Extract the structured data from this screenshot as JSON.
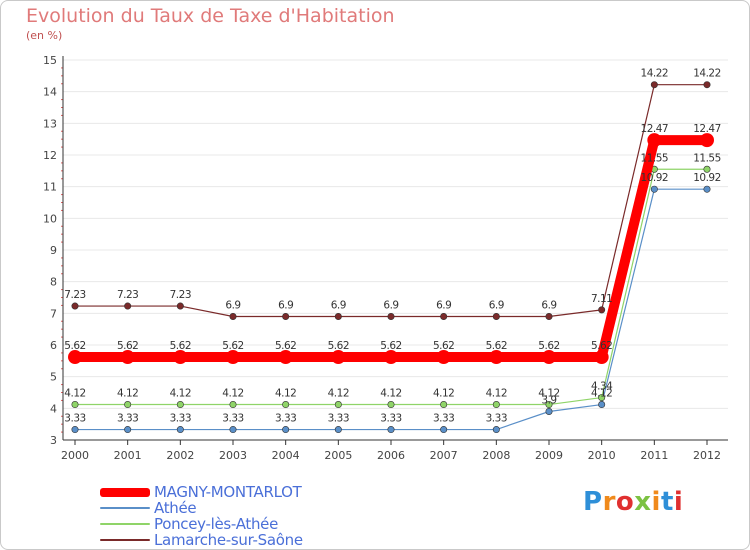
{
  "header": {
    "title": "Evolution du Taux de Taxe d'Habitation",
    "unit": "(en %)"
  },
  "chart_data": {
    "type": "line",
    "title": "Evolution du Taux de Taxe d'Habitation",
    "ylabel": "(en %)",
    "xlabel": "",
    "ylim": [
      3,
      15
    ],
    "yticks": [
      "3",
      "4",
      "5",
      "6",
      "7",
      "8",
      "9",
      "10",
      "11",
      "12",
      "13",
      "14",
      "15"
    ],
    "categories": [
      "2000",
      "2001",
      "2002",
      "2003",
      "2004",
      "2005",
      "2006",
      "2007",
      "2008",
      "2009",
      "2010",
      "2011",
      "2012"
    ],
    "series": [
      {
        "name": "MAGNY-MONTARLOT",
        "color": "#ff0000",
        "values": [
          5.62,
          5.62,
          5.62,
          5.62,
          5.62,
          5.62,
          5.62,
          5.62,
          5.62,
          5.62,
          5.62,
          12.47,
          12.47
        ],
        "labels": [
          "5.62",
          "5.62",
          "5.62",
          "5.62",
          "5.62",
          "5.62",
          "5.62",
          "5.62",
          "5.62",
          "5.62",
          "5.62",
          "12.47",
          "12.47"
        ]
      },
      {
        "name": "Athée",
        "color": "#5a8fc8",
        "values": [
          3.33,
          3.33,
          3.33,
          3.33,
          3.33,
          3.33,
          3.33,
          3.33,
          3.33,
          3.9,
          4.12,
          10.92,
          10.92
        ],
        "labels": [
          "3.33",
          "3.33",
          "3.33",
          "3.33",
          "3.33",
          "3.33",
          "3.33",
          "3.33",
          "3.33",
          "3.9",
          "4.12",
          "10.92",
          "10.92"
        ]
      },
      {
        "name": "Poncey-lès-Athée",
        "color": "#8fd468",
        "values": [
          4.12,
          4.12,
          4.12,
          4.12,
          4.12,
          4.12,
          4.12,
          4.12,
          4.12,
          4.12,
          4.34,
          11.55,
          11.55
        ],
        "labels": [
          "4.12",
          "4.12",
          "4.12",
          "4.12",
          "4.12",
          "4.12",
          "4.12",
          "4.12",
          "4.12",
          "4.12",
          "4.34",
          "11.55",
          "11.55"
        ]
      },
      {
        "name": "Lamarche-sur-Saône",
        "color": "#7a2a2a",
        "values": [
          7.23,
          7.23,
          7.23,
          6.9,
          6.9,
          6.9,
          6.9,
          6.9,
          6.9,
          6.9,
          7.11,
          14.22,
          14.22
        ],
        "labels": [
          "7.23",
          "7.23",
          "7.23",
          "6.9",
          "6.9",
          "6.9",
          "6.9",
          "6.9",
          "6.9",
          "6.9",
          "7.11",
          "14.22",
          "14.22"
        ]
      }
    ]
  },
  "legend": {
    "items": [
      "MAGNY-MONTARLOT",
      "Athée",
      "Poncey-lès-Athée",
      "Lamarche-sur-Saône"
    ]
  },
  "logo": {
    "text": "Proxiti",
    "letter_colors": [
      "#2e8fd8",
      "#f08a1c",
      "#e03030",
      "#7cc242",
      "#f08a1c",
      "#2e8fd8",
      "#e03030"
    ]
  }
}
